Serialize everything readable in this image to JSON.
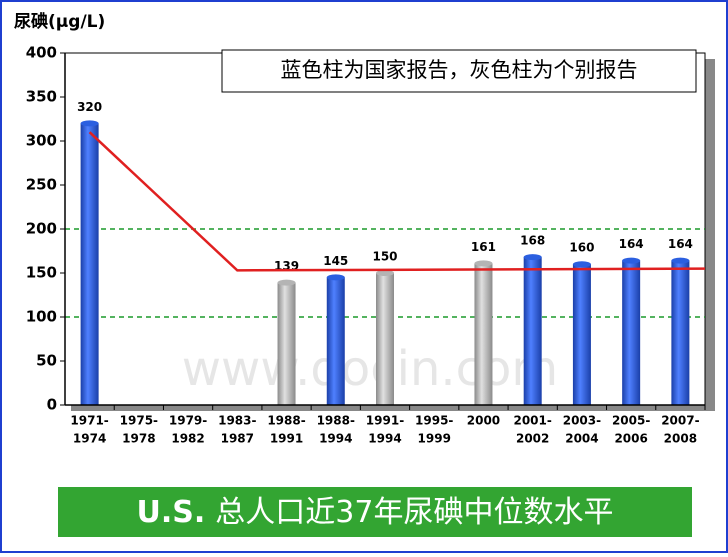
{
  "chart_data": {
    "type": "bar",
    "y_label": "尿碘(μg/L)",
    "annotation": "蓝色柱为国家报告，灰色柱为个别报告",
    "watermark": "www.docin.com",
    "title_prefix": "U.S.",
    "title": "总人口近37年尿碘中位数水平",
    "categories": [
      [
        "1971-",
        "1974"
      ],
      [
        "1975-",
        "1978"
      ],
      [
        "1979-",
        "1982"
      ],
      [
        "1983-",
        "1987"
      ],
      [
        "1988-",
        "1991"
      ],
      [
        "1988-",
        "1994"
      ],
      [
        "1991-",
        "1994"
      ],
      [
        "1995-",
        "1999"
      ],
      [
        "2000"
      ],
      [
        "2001-",
        "2002"
      ],
      [
        "2003-",
        "2004"
      ],
      [
        "2005-",
        "2006"
      ],
      [
        "2007-",
        "2008"
      ]
    ],
    "values": [
      320,
      null,
      null,
      null,
      139,
      145,
      150,
      null,
      161,
      168,
      160,
      164,
      164
    ],
    "colors": [
      "#2b5fe0",
      null,
      null,
      null,
      "#b4b4b4",
      "#2b5fe0",
      "#b4b4b4",
      null,
      "#b4b4b4",
      "#2b5fe0",
      "#2b5fe0",
      "#2b5fe0",
      "#2b5fe0"
    ],
    "trend": {
      "x": [
        0,
        3,
        12.5
      ],
      "values": [
        310,
        153,
        155
      ],
      "color": "#e02020"
    },
    "reference_lines": [
      {
        "value": 200,
        "color": "#1a9a2a"
      },
      {
        "value": 100,
        "color": "#1a9a2a"
      }
    ],
    "ylim": [
      0,
      400
    ],
    "yticks": [
      0,
      50,
      100,
      150,
      200,
      250,
      300,
      350,
      400
    ]
  }
}
